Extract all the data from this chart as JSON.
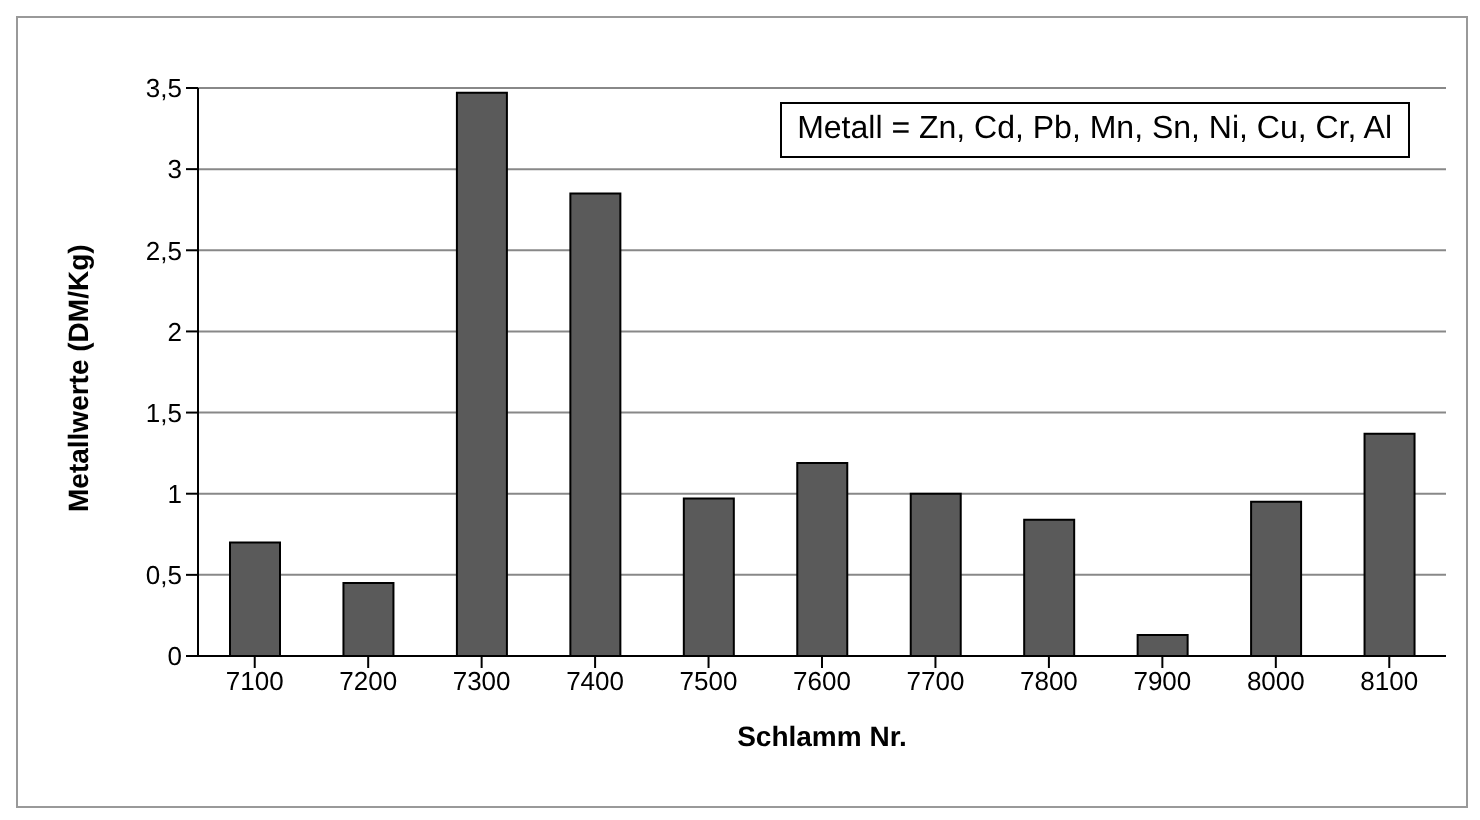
{
  "chart_data": {
    "type": "bar",
    "xlabel": "Schlamm Nr.",
    "ylabel": "Metallwerte (DM/Kg)",
    "categories": [
      "7100",
      "7200",
      "7300",
      "7400",
      "7500",
      "7600",
      "7700",
      "7800",
      "7900",
      "8000",
      "8100"
    ],
    "values": [
      0.7,
      0.45,
      3.47,
      2.85,
      0.97,
      1.19,
      1.0,
      0.84,
      0.13,
      0.95,
      1.37
    ],
    "color": "#5a5a5a",
    "ylim": [
      0,
      3.5
    ],
    "yticks": [
      0,
      {
        "value": 0.5,
        "label": "0,5"
      },
      1,
      {
        "value": 1.5,
        "label": "1,5"
      },
      2,
      {
        "value": 2.5,
        "label": "2,5"
      },
      3,
      {
        "value": 3.5,
        "label": "3,5"
      }
    ],
    "grid": "y",
    "annotations": [
      "Metall = Zn, Cd, Pb, Mn, Sn, Ni, Cu, Cr, Al"
    ]
  }
}
